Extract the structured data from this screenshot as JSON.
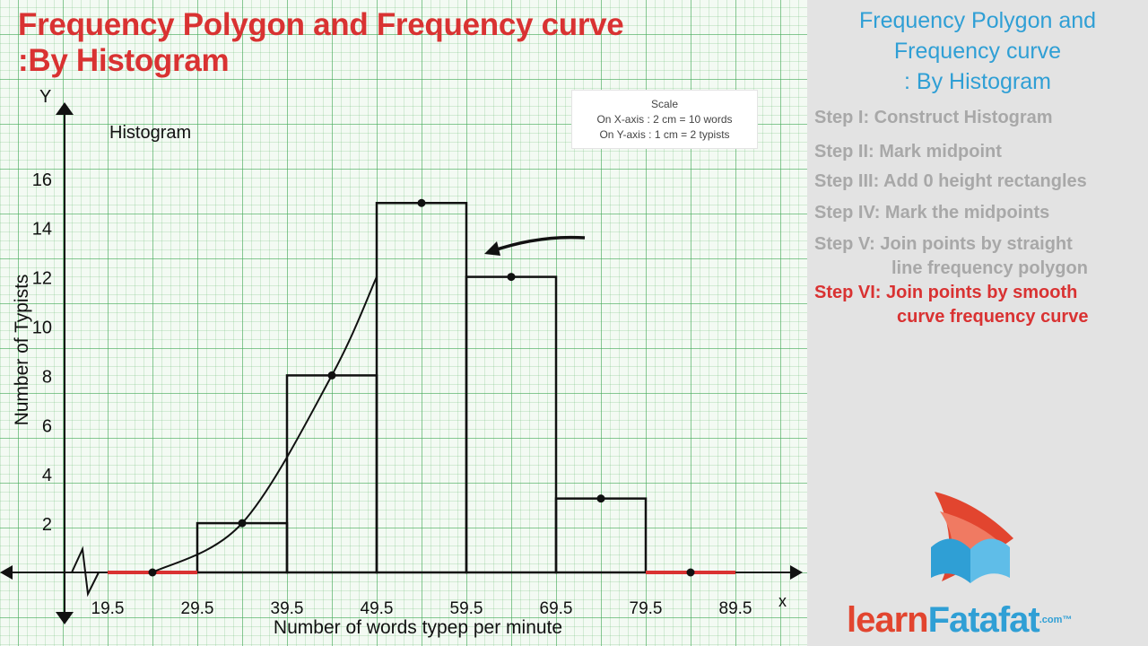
{
  "title": {
    "line1": "Frequency Polygon and Frequency curve",
    "line2": ":By Histogram"
  },
  "scale": {
    "heading": "Scale",
    "x_line": "On X-axis : 2 cm = 10 words",
    "y_line": "On Y-axis : 1 cm = 2 typists"
  },
  "chart_data": {
    "type": "bar",
    "title": "Histogram",
    "xlabel": "Number of words typep per minute",
    "ylabel": "Number of Typists",
    "x_axis_letter": "x",
    "y_axis_letter": "Y",
    "x_ticks": [
      "19.5",
      "29.5",
      "39.5",
      "49.5",
      "59.5",
      "69.5",
      "79.5",
      "89.5"
    ],
    "y_ticks": [
      "2",
      "4",
      "6",
      "8",
      "10",
      "12",
      "14",
      "16"
    ],
    "ylim": [
      0,
      17
    ],
    "bins": [
      {
        "start": 19.5,
        "end": 29.5,
        "value": 0
      },
      {
        "start": 29.5,
        "end": 39.5,
        "value": 2
      },
      {
        "start": 39.5,
        "end": 49.5,
        "value": 8
      },
      {
        "start": 49.5,
        "end": 59.5,
        "value": 15
      },
      {
        "start": 59.5,
        "end": 69.5,
        "value": 12
      },
      {
        "start": 69.5,
        "end": 79.5,
        "value": 3
      },
      {
        "start": 79.5,
        "end": 89.5,
        "value": 0
      }
    ],
    "midpoints": [
      {
        "x": 24.5,
        "y": 0
      },
      {
        "x": 34.5,
        "y": 2
      },
      {
        "x": 44.5,
        "y": 8
      },
      {
        "x": 54.5,
        "y": 15
      },
      {
        "x": 64.5,
        "y": 12
      },
      {
        "x": 74.5,
        "y": 3
      },
      {
        "x": 84.5,
        "y": 0
      }
    ],
    "frequency_curve_points": [
      {
        "x": 24.5,
        "y": 0
      },
      {
        "x": 34.5,
        "y": 2
      },
      {
        "x": 44.5,
        "y": 8
      },
      {
        "x": 49.5,
        "y": 12
      }
    ],
    "zero_height_color": "#d93232"
  },
  "side_panel": {
    "title_lines": [
      "Frequency Polygon and",
      "Frequency curve",
      ": By Histogram"
    ],
    "steps": [
      {
        "label": "Step I: Construct Histogram",
        "active": false
      },
      {
        "label": "Step II: Mark midpoint",
        "active": false
      },
      {
        "label": "Step III: Add 0 height rectangles",
        "active": false
      },
      {
        "label": "Step IV: Mark the midpoints",
        "active": false
      },
      {
        "label": "Step V: Join points by straight",
        "cont": "line  frequency polygon",
        "active": false
      },
      {
        "label": "Step VI: Join points by smooth",
        "cont": "curve frequency curve",
        "active": true
      }
    ]
  },
  "brand": {
    "learn": "learn",
    "fatafat": "Fatafat",
    "dotcom": ".com",
    "tm": "™"
  },
  "colors": {
    "title_red": "#d93232",
    "side_title_blue": "#2f9fd5",
    "inactive_step_gray": "#a8a8a8",
    "grid_green": "#46aa5a"
  }
}
